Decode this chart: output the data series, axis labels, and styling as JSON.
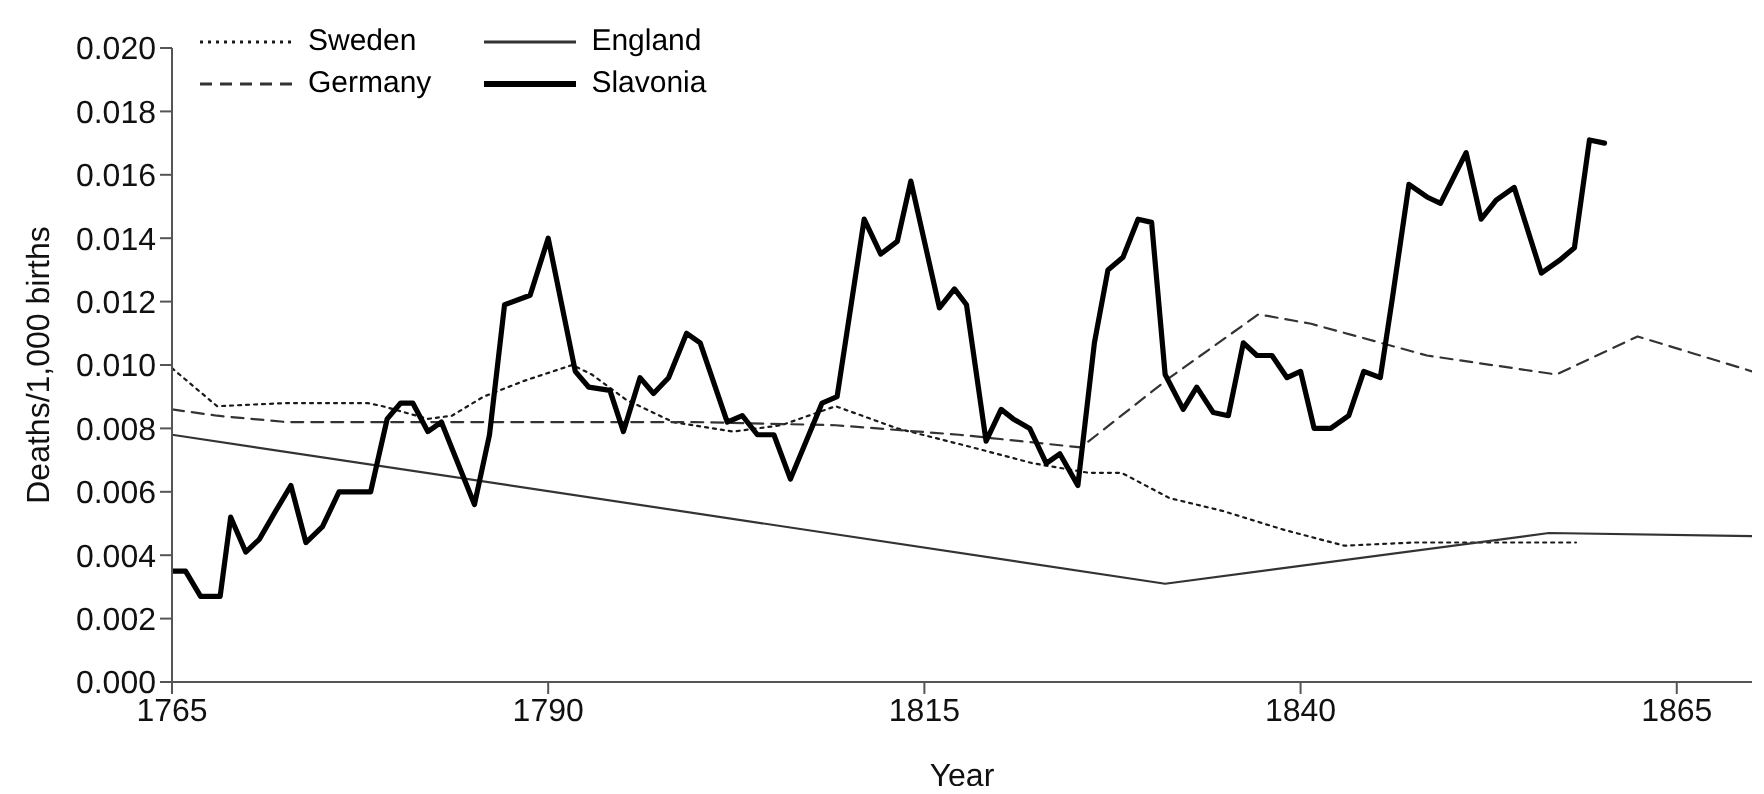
{
  "chart_data": {
    "type": "line",
    "xlabel": "Year",
    "ylabel": "Deaths/1,000 births",
    "xlim": [
      1765,
      1870
    ],
    "xticks": [
      1765,
      1790,
      1815,
      1840,
      1865
    ],
    "ylim": [
      0,
      0.02
    ],
    "yticks": [
      {
        "value": 0,
        "label": "0.000"
      },
      {
        "value": 0.002,
        "label": "0.002"
      },
      {
        "value": 0.004,
        "label": "0.004"
      },
      {
        "value": 0.006,
        "label": "0.006"
      },
      {
        "value": 0.008,
        "label": "0.008"
      },
      {
        "value": 0.01,
        "label": "0.010"
      },
      {
        "value": 0.012,
        "label": "0.012"
      },
      {
        "value": 0.014,
        "label": "0.014"
      },
      {
        "value": 0.016,
        "label": "0.016"
      },
      {
        "value": 0.018,
        "label": "0.018"
      },
      {
        "value": 0.02,
        "label": "0.020"
      }
    ],
    "grid": false,
    "legend": "top left",
    "marker": "none",
    "series": [
      {
        "name": "Sweden",
        "color": "#1a1a1a",
        "line_style": "dotted",
        "x": [
          1765,
          1768,
          1772.6,
          1778,
          1779,
          1782,
          1783.6,
          1785.7,
          1788.4,
          1791.6,
          1792.9,
          1795.2,
          1798.3,
          1802.3,
          1805.5,
          1809.1,
          1813.2,
          1818.2,
          1822.2,
          1825.9,
          1828.1,
          1831.3,
          1834.8,
          1838.9,
          1842.9,
          1847.5,
          1852.9,
          1858.3
        ],
        "values": [
          0.0099,
          0.0087,
          0.0088,
          0.0088,
          0.0087,
          0.0083,
          0.0084,
          0.009,
          0.0095,
          0.01,
          0.0097,
          0.0089,
          0.0082,
          0.0079,
          0.0081,
          0.0087,
          0.008,
          0.0074,
          0.0069,
          0.0066,
          0.0066,
          0.0058,
          0.0054,
          0.0048,
          0.0043,
          0.0044,
          0.0044,
          0.0044
        ]
      },
      {
        "name": "Germany",
        "color": "#333333",
        "line_style": "dashed",
        "x": [
          1765,
          1768,
          1772.6,
          1799.7,
          1809.1,
          1817.3,
          1825.4,
          1831.3,
          1837.2,
          1840.7,
          1848.4,
          1857,
          1862.4,
          1870
        ],
        "values": [
          0.0086,
          0.0084,
          0.0082,
          0.0082,
          0.0081,
          0.0078,
          0.0074,
          0.0096,
          0.0116,
          0.0113,
          0.0103,
          0.0097,
          0.0109,
          0.0098
        ]
      },
      {
        "name": "England",
        "color": "#333333",
        "line_style": "solid",
        "x": [
          1765,
          1831,
          1856.5,
          1870
        ],
        "values": [
          0.0078,
          0.0031,
          0.0047,
          0.0046
        ]
      },
      {
        "name": "Slavonia",
        "color": "#000000",
        "line_style": "solid",
        "x": [
          1765,
          1765.9,
          1766.9,
          1768.2,
          1768.9,
          1769.9,
          1770.8,
          1771.9,
          1772.9,
          1773.9,
          1775,
          1776.1,
          1778.2,
          1779.3,
          1780.2,
          1781,
          1782,
          1782.9,
          1785.1,
          1786.1,
          1787.1,
          1788.8,
          1790,
          1791.8,
          1792.7,
          1794.1,
          1795,
          1796.1,
          1797,
          1798,
          1799.2,
          1800.1,
          1801.9,
          1802.9,
          1803.9,
          1805,
          1806.1,
          1808.2,
          1809.2,
          1811,
          1812.1,
          1813.2,
          1814.1,
          1816,
          1817,
          1817.8,
          1819.1,
          1820.1,
          1820.9,
          1822,
          1823.1,
          1824,
          1825.2,
          1826.3,
          1827.2,
          1828.2,
          1829.2,
          1830.1,
          1831,
          1832.2,
          1833.1,
          1834.2,
          1835.2,
          1836.2,
          1837.1,
          1838.1,
          1839.1,
          1840,
          1840.9,
          1842,
          1843.2,
          1844.2,
          1845.3,
          1846.1,
          1847.2,
          1848.4,
          1849.3,
          1851,
          1852,
          1853,
          1854.2,
          1856,
          1857.2,
          1858.2,
          1859.2,
          1860.2
        ],
        "values": [
          0.0035,
          0.0035,
          0.0027,
          0.0027,
          0.0052,
          0.0041,
          0.0045,
          0.0054,
          0.0062,
          0.0044,
          0.0049,
          0.006,
          0.006,
          0.0083,
          0.0088,
          0.0088,
          0.0079,
          0.0082,
          0.0056,
          0.0078,
          0.0119,
          0.0122,
          0.014,
          0.0098,
          0.0093,
          0.0092,
          0.0079,
          0.0096,
          0.0091,
          0.0096,
          0.011,
          0.0107,
          0.0082,
          0.0084,
          0.0078,
          0.0078,
          0.0064,
          0.0088,
          0.009,
          0.0146,
          0.0135,
          0.0139,
          0.0158,
          0.0118,
          0.0124,
          0.0119,
          0.0076,
          0.0086,
          0.0083,
          0.008,
          0.0069,
          0.0072,
          0.0062,
          0.0107,
          0.013,
          0.0134,
          0.0146,
          0.0145,
          0.0097,
          0.0086,
          0.0093,
          0.0085,
          0.0084,
          0.0107,
          0.0103,
          0.0103,
          0.0096,
          0.0098,
          0.008,
          0.008,
          0.0084,
          0.0098,
          0.0096,
          0.0121,
          0.0157,
          0.0153,
          0.0151,
          0.0167,
          0.0146,
          0.0152,
          0.0156,
          0.0129,
          0.0133,
          0.0137,
          0.0171,
          0.017
        ]
      }
    ]
  }
}
